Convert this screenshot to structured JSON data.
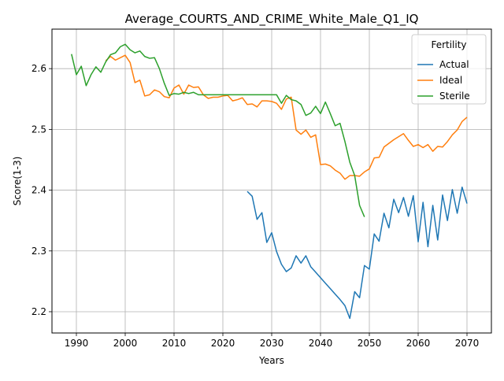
{
  "chart_data": {
    "type": "line",
    "title": "Average_COURTS_AND_CRIME_White_Male_Q1_IQ",
    "xlabel": "Years",
    "ylabel": "Score(1-3)",
    "xlim": [
      1985,
      2075
    ],
    "ylim": [
      2.165,
      2.665
    ],
    "xticks": [
      1990,
      2000,
      2010,
      2020,
      2030,
      2040,
      2050,
      2060,
      2070
    ],
    "xtick_labels": [
      "1990",
      "2000",
      "2010",
      "2020",
      "2030",
      "2040",
      "2050",
      "2060",
      "2070"
    ],
    "yticks": [
      2.2,
      2.3,
      2.4,
      2.5,
      2.6
    ],
    "ytick_labels": [
      "2.2",
      "2.3",
      "2.4",
      "2.5",
      "2.6"
    ],
    "grid": true,
    "legend": {
      "title": "Fertility",
      "placement": "top-right"
    },
    "series": [
      {
        "name": "Actual",
        "color": "#1f77b4",
        "x": [
          2025,
          2026,
          2027,
          2028,
          2029,
          2030,
          2031,
          2032,
          2033,
          2034,
          2035,
          2036,
          2037,
          2038,
          2039,
          2040,
          2041,
          2042,
          2043,
          2044,
          2045,
          2046,
          2047,
          2048,
          2049,
          2050,
          2051,
          2052,
          2053,
          2054,
          2055,
          2056,
          2057,
          2058,
          2059,
          2060,
          2061,
          2062,
          2063,
          2064,
          2065,
          2066,
          2067,
          2068,
          2069,
          2070
        ],
        "y": [
          2.398,
          2.39,
          2.352,
          2.363,
          2.314,
          2.33,
          2.299,
          2.278,
          2.266,
          2.272,
          2.292,
          2.28,
          2.292,
          2.274,
          2.265,
          2.256,
          2.247,
          2.238,
          2.229,
          2.22,
          2.21,
          2.189,
          2.233,
          2.223,
          2.276,
          2.27,
          2.328,
          2.316,
          2.362,
          2.338,
          2.385,
          2.363,
          2.388,
          2.357,
          2.391,
          2.315,
          2.38,
          2.307,
          2.375,
          2.318,
          2.392,
          2.35,
          2.401,
          2.362,
          2.405,
          2.378
        ]
      },
      {
        "name": "Ideal",
        "color": "#ff7f0e",
        "x": [
          1996,
          1997,
          1998,
          1999,
          2000,
          2001,
          2002,
          2003,
          2004,
          2005,
          2006,
          2007,
          2008,
          2009,
          2010,
          2011,
          2012,
          2013,
          2014,
          2015,
          2016,
          2017,
          2018,
          2019,
          2020,
          2021,
          2022,
          2023,
          2024,
          2025,
          2026,
          2027,
          2028,
          2029,
          2030,
          2031,
          2032,
          2033,
          2034,
          2035,
          2036,
          2037,
          2038,
          2039,
          2040,
          2041,
          2042,
          2043,
          2044,
          2045,
          2046,
          2047,
          2048,
          2049,
          2050,
          2051,
          2052,
          2053,
          2054,
          2055,
          2056,
          2057,
          2058,
          2059,
          2060,
          2061,
          2062,
          2063,
          2064,
          2065,
          2066,
          2067,
          2068,
          2069,
          2070
        ],
        "y": [
          2.613,
          2.62,
          2.614,
          2.618,
          2.622,
          2.61,
          2.577,
          2.581,
          2.555,
          2.557,
          2.565,
          2.562,
          2.554,
          2.552,
          2.568,
          2.573,
          2.558,
          2.573,
          2.569,
          2.57,
          2.557,
          2.551,
          2.553,
          2.553,
          2.555,
          2.556,
          2.547,
          2.549,
          2.552,
          2.541,
          2.542,
          2.537,
          2.547,
          2.547,
          2.546,
          2.543,
          2.533,
          2.55,
          2.553,
          2.499,
          2.492,
          2.499,
          2.487,
          2.491,
          2.442,
          2.443,
          2.44,
          2.433,
          2.428,
          2.418,
          2.424,
          2.424,
          2.423,
          2.43,
          2.435,
          2.453,
          2.454,
          2.471,
          2.477,
          2.483,
          2.488,
          2.493,
          2.482,
          2.472,
          2.475,
          2.47,
          2.475,
          2.464,
          2.472,
          2.471,
          2.48,
          2.491,
          2.499,
          2.513,
          2.52
        ]
      },
      {
        "name": "Sterile",
        "color": "#2ca02c",
        "x": [
          1989,
          1990,
          1991,
          1992,
          1993,
          1994,
          1995,
          1996,
          1997,
          1998,
          1999,
          2000,
          2001,
          2002,
          2003,
          2004,
          2005,
          2006,
          2007,
          2008,
          2009,
          2010,
          2011,
          2012,
          2013,
          2014,
          2015,
          2016,
          2017,
          2018,
          2019,
          2020,
          2021,
          2022,
          2023,
          2024,
          2025,
          2026,
          2027,
          2028,
          2029,
          2030,
          2031,
          2032,
          2033,
          2034,
          2035,
          2036,
          2037,
          2038,
          2039,
          2040,
          2041,
          2042,
          2043,
          2044,
          2045,
          2046,
          2047,
          2048,
          2049
        ],
        "y": [
          2.624,
          2.59,
          2.604,
          2.572,
          2.59,
          2.603,
          2.594,
          2.611,
          2.623,
          2.626,
          2.636,
          2.64,
          2.631,
          2.626,
          2.629,
          2.62,
          2.617,
          2.618,
          2.6,
          2.576,
          2.556,
          2.559,
          2.558,
          2.561,
          2.559,
          2.561,
          2.557,
          2.557,
          2.557,
          2.557,
          2.557,
          2.557,
          2.557,
          2.557,
          2.557,
          2.557,
          2.557,
          2.557,
          2.557,
          2.557,
          2.557,
          2.557,
          2.557,
          2.543,
          2.556,
          2.549,
          2.547,
          2.541,
          2.523,
          2.527,
          2.538,
          2.526,
          2.545,
          2.526,
          2.506,
          2.51,
          2.48,
          2.446,
          2.424,
          2.375,
          2.356
        ]
      }
    ]
  }
}
